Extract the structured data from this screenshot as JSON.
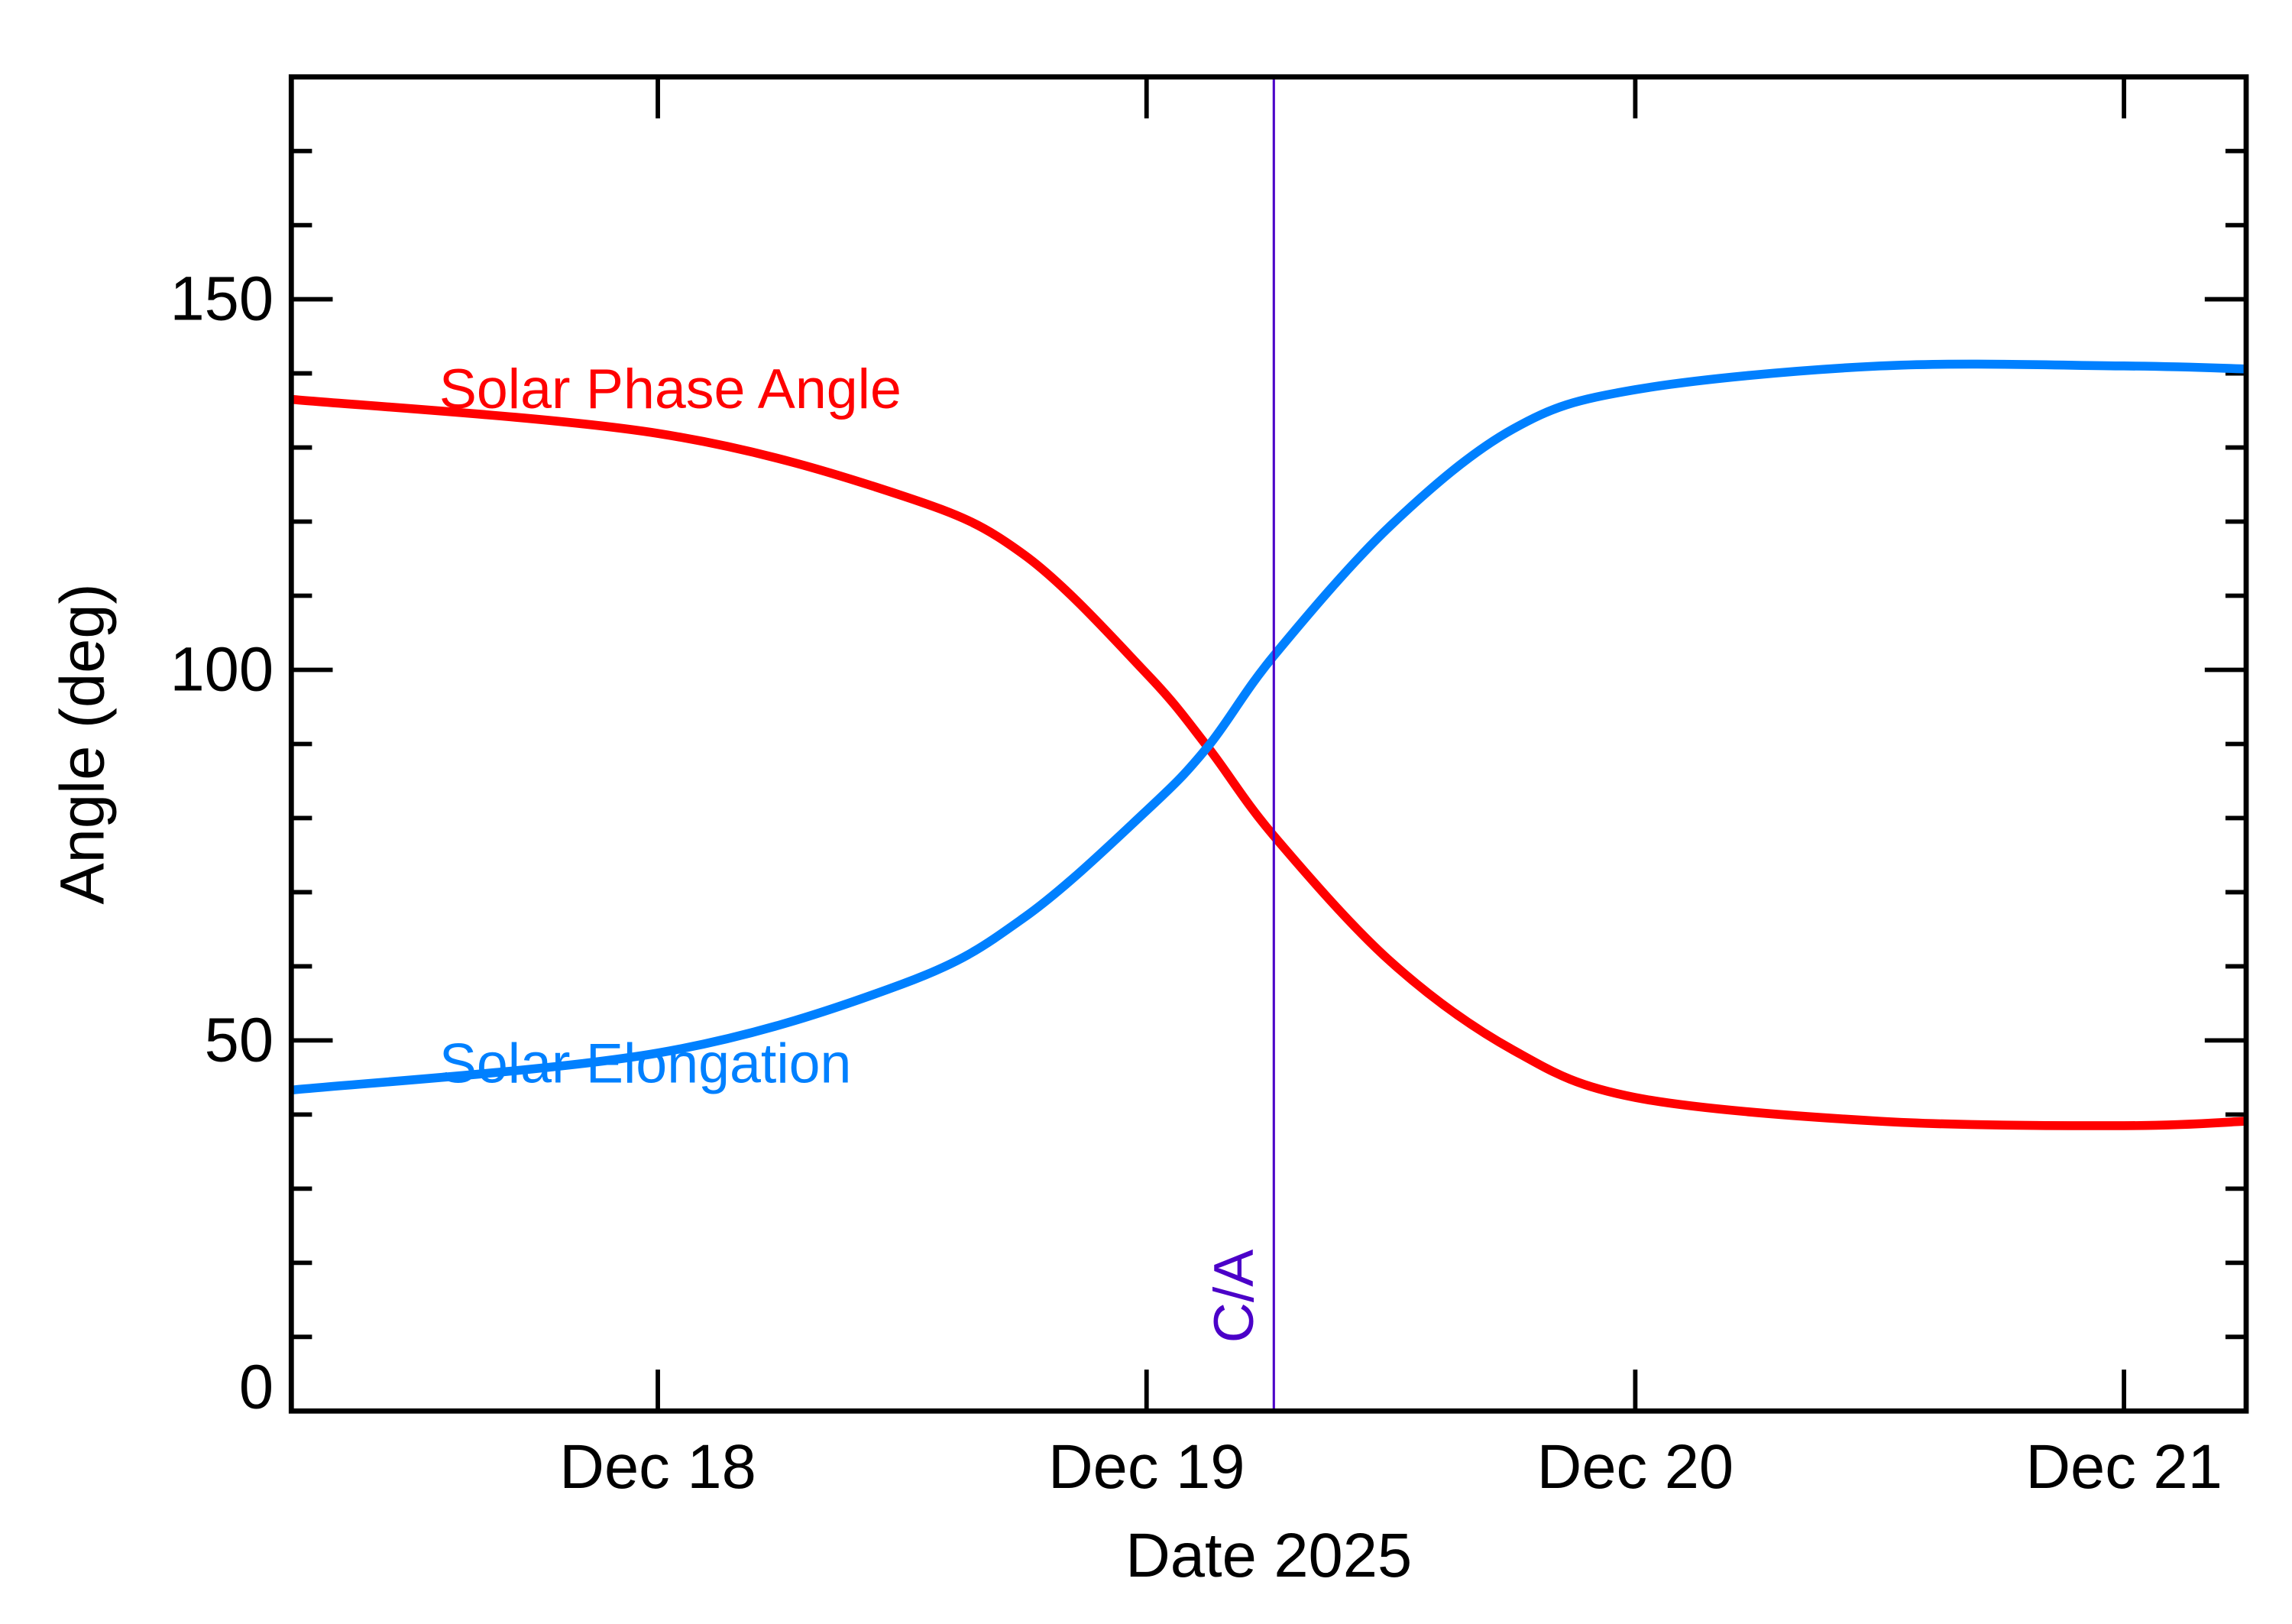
{
  "chart_data": {
    "type": "line",
    "xlabel": "Date 2025",
    "ylabel": "Angle (deg)",
    "xlim": [
      "2025-12-17T06:00",
      "2025-12-21T06:00"
    ],
    "ylim": [
      0,
      180
    ],
    "x_ticks": [
      {
        "date": "2025-12-18T00:00",
        "label": "Dec 18"
      },
      {
        "date": "2025-12-19T00:00",
        "label": "Dec 19"
      },
      {
        "date": "2025-12-20T00:00",
        "label": "Dec 20"
      },
      {
        "date": "2025-12-21T00:00",
        "label": "Dec 21"
      }
    ],
    "y_ticks": [
      0,
      50,
      100,
      150
    ],
    "y_minor_step": 10,
    "grid": false,
    "x": [
      "2025-12-17T06:00",
      "2025-12-18T00:00",
      "2025-12-18T12:00",
      "2025-12-18T18:00",
      "2025-12-19T00:00",
      "2025-12-19T03:00",
      "2025-12-19T06:15",
      "2025-12-19T12:00",
      "2025-12-19T18:00",
      "2025-12-20T00:00",
      "2025-12-20T12:00",
      "2025-12-21T00:00",
      "2025-12-21T06:00"
    ],
    "series": [
      {
        "name": "Solar Phase Angle",
        "color": "#FF0000",
        "values": [
          136.5,
          131.9,
          123.5,
          115.5,
          99.5,
          89.6,
          77.6,
          60.6,
          48.7,
          42.3,
          39.1,
          38.5,
          39.1
        ]
      },
      {
        "name": "Solar Elongation",
        "color": "#0080FF",
        "values": [
          43.3,
          48.3,
          57.6,
          66.6,
          81.0,
          89.6,
          101.9,
          119.5,
          132.5,
          137.8,
          141.0,
          141.0,
          140.6
        ]
      }
    ],
    "annotations": [
      {
        "type": "vertical-line",
        "label": "C/A",
        "date": "2025-12-19T06:15",
        "color": "#4B00C8"
      }
    ]
  }
}
